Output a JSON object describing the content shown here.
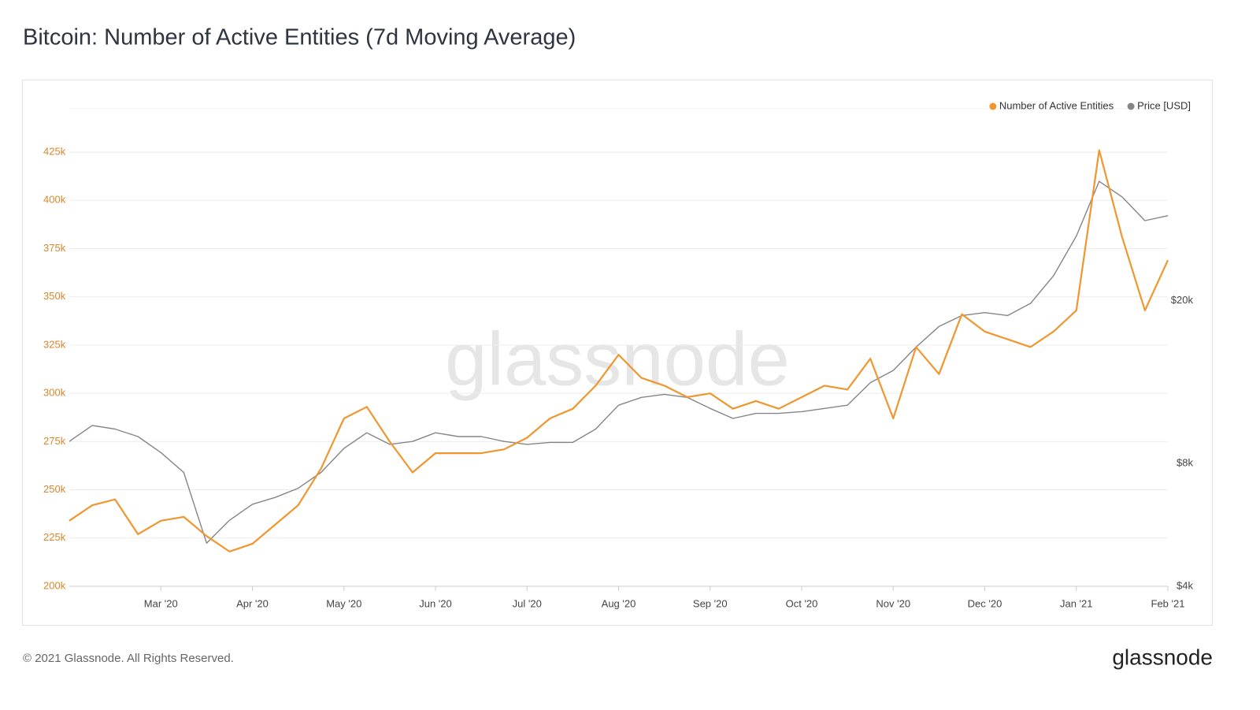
{
  "chart_data": {
    "type": "line",
    "title": "Bitcoin: Number of Active Entities (7d Moving Average)",
    "watermark": "glassnode",
    "footer": "© 2021 Glassnode. All Rights Reserved.",
    "brand": "glassnode",
    "legend": "top-right",
    "grid": true,
    "categories": [
      null,
      null,
      null,
      null,
      "Mar '20",
      null,
      null,
      null,
      "Apr '20",
      null,
      null,
      null,
      "May '20",
      null,
      null,
      null,
      "Jun '20",
      null,
      null,
      null,
      "Jul '20",
      null,
      null,
      null,
      "Aug '20",
      null,
      null,
      null,
      "Sep '20",
      null,
      null,
      null,
      "Oct '20",
      null,
      null,
      null,
      "Nov '20",
      null,
      null,
      null,
      "Dec '20",
      null,
      null,
      null,
      "Jan '21",
      null,
      null,
      null,
      "Feb '21"
    ],
    "ylim": [
      200000,
      447500
    ],
    "yticks": [
      {
        "value": 200000,
        "label": "200k"
      },
      {
        "value": 225000,
        "label": "225k"
      },
      {
        "value": 250000,
        "label": "250k"
      },
      {
        "value": 275000,
        "label": "275k"
      },
      {
        "value": 300000,
        "label": "300k"
      },
      {
        "value": 325000,
        "label": "325k"
      },
      {
        "value": 350000,
        "label": "350k"
      },
      {
        "value": 375000,
        "label": "375k"
      },
      {
        "value": 400000,
        "label": "400k"
      },
      {
        "value": 425000,
        "label": "425k"
      }
    ],
    "y2lim": [
      4000,
      59000
    ],
    "y2log": true,
    "y2ticks": [
      {
        "value": 4000,
        "label": "$4k"
      },
      {
        "value": 8000,
        "label": "$8k"
      },
      {
        "value": 20000,
        "label": "$20k"
      }
    ],
    "series": [
      {
        "name": "Number of Active Entities",
        "color": "#f0962f",
        "axis": "y",
        "values": [
          234000,
          242000,
          245000,
          227000,
          234000,
          236000,
          226000,
          218000,
          222000,
          232000,
          242000,
          261000,
          287000,
          293000,
          275000,
          259000,
          269000,
          269000,
          269000,
          271000,
          277000,
          287000,
          292000,
          304000,
          320000,
          308000,
          304000,
          298000,
          300000,
          292000,
          296000,
          292000,
          298000,
          304000,
          302000,
          318000,
          287000,
          324000,
          310000,
          341000,
          332000,
          328000,
          324000,
          332000,
          343000,
          426000,
          381000,
          343000,
          369000
        ]
      },
      {
        "name": "Price [USD]",
        "color": "#858585",
        "axis": "y2",
        "values": [
          9050,
          9900,
          9700,
          9300,
          8500,
          7600,
          5100,
          5800,
          6350,
          6600,
          6950,
          7600,
          8700,
          9500,
          8900,
          9050,
          9500,
          9300,
          9300,
          9050,
          8900,
          9000,
          9000,
          9700,
          11100,
          11600,
          11800,
          11600,
          10900,
          10300,
          10600,
          10600,
          10700,
          10900,
          11100,
          12600,
          13500,
          15400,
          17300,
          18400,
          18700,
          18400,
          19700,
          23000,
          28800,
          39200,
          35900,
          31400,
          32300
        ]
      }
    ]
  }
}
